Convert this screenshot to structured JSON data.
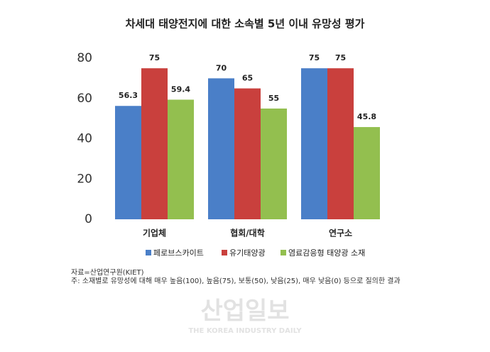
{
  "chart_data": {
    "type": "bar",
    "title": "차세대 태양전지에 대한 소속별 5년 이내 유망성 평가",
    "categories": [
      "기업체",
      "협회/대학",
      "연구소"
    ],
    "series": [
      {
        "name": "페로브스카이트",
        "color": "#4a7fc8",
        "values": [
          56.3,
          70,
          75
        ]
      },
      {
        "name": "유기태양광",
        "color": "#c9403d",
        "values": [
          75,
          65,
          75
        ]
      },
      {
        "name": "염료감응형 태양광 소재",
        "color": "#93bf4f",
        "values": [
          59.4,
          55,
          45.8
        ]
      }
    ],
    "ylim": [
      0,
      80
    ],
    "yticks": [
      0,
      20,
      40,
      60,
      80
    ],
    "grid": false,
    "legend": "bottom",
    "notes": [
      "자료=산업연구원(KIET)",
      "주: 소재별로 유망성에 대해 매우 높음(100), 높음(75), 보통(50), 낮음(25), 매우 낮음(0) 등으로 질의한 결과"
    ]
  },
  "watermark": {
    "name": "산업일보",
    "subtitle": "THE KOREA INDUSTRY DAILY"
  }
}
